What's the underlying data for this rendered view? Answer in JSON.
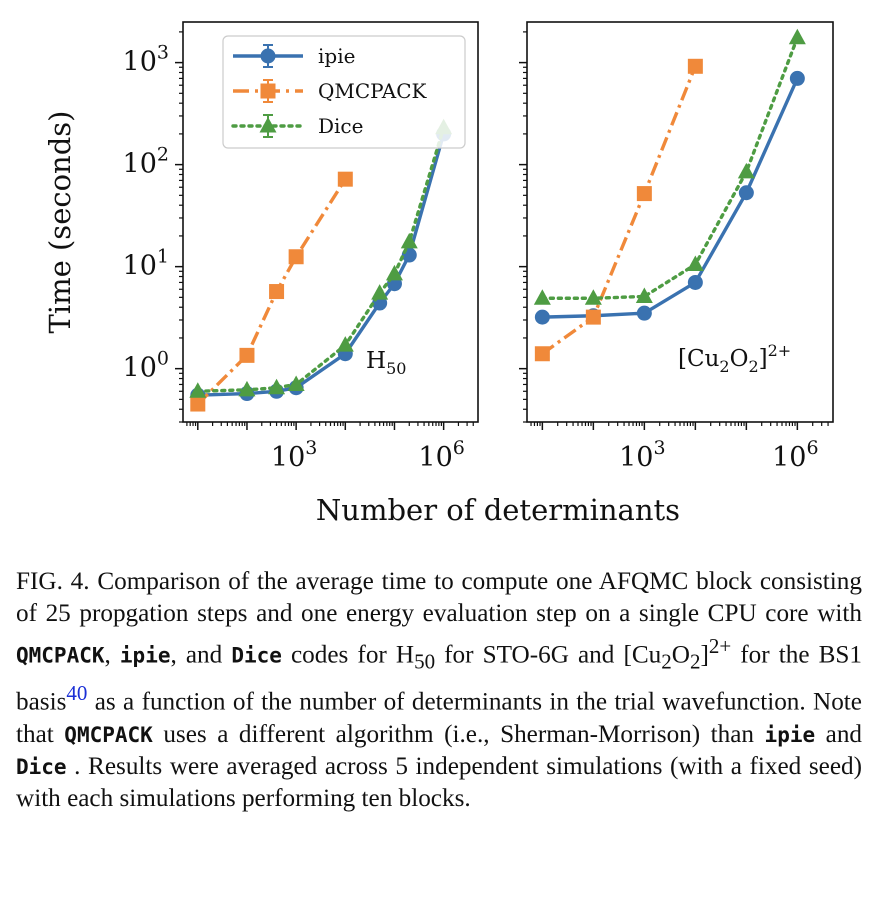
{
  "chart_data": [
    {
      "type": "line",
      "panel_label": {
        "base": "H",
        "sub": "50"
      },
      "xscale": "log",
      "yscale": "log",
      "xlim": [
        5,
        5000000
      ],
      "ylim": [
        0.3,
        2500
      ],
      "xticks": [
        {
          "base": "10",
          "exp": "3"
        },
        {
          "base": "10",
          "exp": "6"
        }
      ],
      "yticks": [
        {
          "base": "10",
          "exp": "0"
        },
        {
          "base": "10",
          "exp": "1"
        },
        {
          "base": "10",
          "exp": "2"
        },
        {
          "base": "10",
          "exp": "3"
        }
      ],
      "series": [
        {
          "name": "ipie",
          "color": "#3a72b0",
          "marker": "circle",
          "dash": "solid",
          "x": [
            10,
            100,
            400,
            1000,
            10000,
            50000,
            100000,
            200000,
            1000000
          ],
          "y": [
            0.55,
            0.57,
            0.6,
            0.65,
            1.4,
            4.4,
            6.8,
            13,
            200
          ]
        },
        {
          "name": "QMCPACK",
          "color": "#f0893a",
          "marker": "square",
          "dash": "dashdot",
          "x": [
            10,
            100,
            400,
            1000,
            10000
          ],
          "y": [
            0.45,
            1.35,
            5.7,
            12.5,
            72
          ]
        },
        {
          "name": "Dice",
          "color": "#4e9c43",
          "marker": "triangle",
          "dash": "dotted",
          "x": [
            10,
            100,
            400,
            1000,
            10000,
            50000,
            100000,
            200000,
            1000000
          ],
          "y": [
            0.6,
            0.62,
            0.65,
            0.7,
            1.7,
            5.5,
            8.5,
            17.5,
            230
          ]
        }
      ]
    },
    {
      "type": "line",
      "panel_label": {
        "text": "[Cu",
        "sub1": "2",
        "mid": "O",
        "sub2": "2",
        "end": "]",
        "sup": "2+"
      },
      "xscale": "log",
      "yscale": "log",
      "xlim": [
        5,
        5000000
      ],
      "ylim": [
        0.3,
        2500
      ],
      "xticks": [
        {
          "base": "10",
          "exp": "3"
        },
        {
          "base": "10",
          "exp": "6"
        }
      ],
      "series": [
        {
          "name": "ipie",
          "color": "#3a72b0",
          "marker": "circle",
          "dash": "solid",
          "x": [
            10,
            100,
            1000,
            10000,
            100000,
            1000000
          ],
          "y": [
            3.2,
            3.3,
            3.5,
            7.0,
            53,
            700
          ]
        },
        {
          "name": "QMCPACK",
          "color": "#f0893a",
          "marker": "square",
          "dash": "dashdot",
          "x": [
            10,
            100,
            1000,
            10000
          ],
          "y": [
            1.4,
            3.2,
            52,
            920
          ]
        },
        {
          "name": "Dice",
          "color": "#4e9c43",
          "marker": "triangle",
          "dash": "dotted",
          "x": [
            10,
            100,
            1000,
            10000,
            100000,
            1000000
          ],
          "y": [
            4.9,
            4.9,
            5.1,
            10.5,
            85,
            1750
          ]
        }
      ]
    }
  ],
  "axes": {
    "ylabel": "Time (seconds)",
    "xlabel": "Number of determinants"
  },
  "legend": {
    "placement": "top-center of left panel",
    "entries": [
      "ipie",
      "QMCPACK",
      "Dice"
    ]
  },
  "caption": {
    "p1": "FIG. 4.  Comparison of the average time to compute one AFQMC block consisting of 25 propgation steps and one energy evaluation step on a single CPU core with ",
    "code1": "QMCPACK",
    "p2": ", ",
    "code2": "ipie",
    "p3": ", and ",
    "code3": "Dice",
    "p4": " codes for H",
    "sub1": "50",
    "p5": " for STO-6G and [Cu",
    "sub2": "2",
    "p6": "O",
    "sub3": "2",
    "p7": "]",
    "sup1": "2+",
    "p8": " for the BS1 basis",
    "ref": "40",
    "p9": " as a function of the number of determinants in the trial wavefunction.  Note that ",
    "code4": "QMCPACK",
    "p10": " uses a different algorithm (i.e., Sherman-Morrison) than ",
    "code5": "ipie",
    "p11": " and ",
    "code6": "Dice",
    "p12": " . Results were averaged across 5 independent simulations (with a fixed seed) with each simulations performing ten blocks."
  }
}
